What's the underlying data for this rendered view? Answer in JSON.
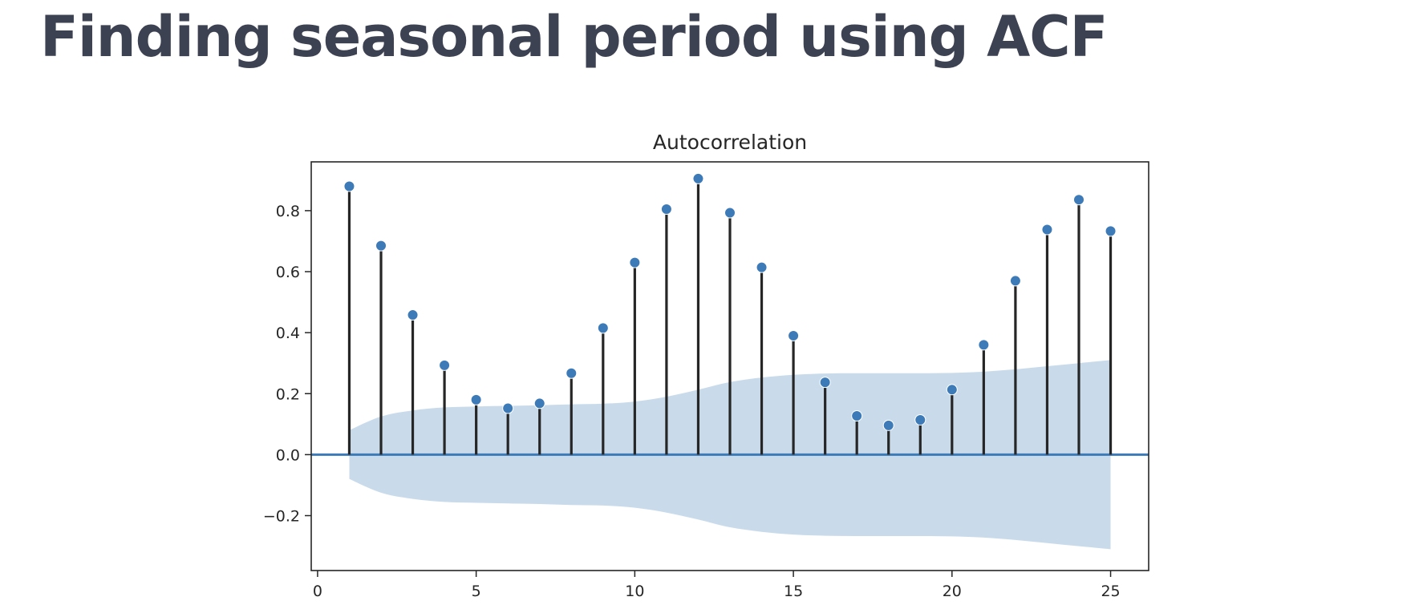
{
  "slide": {
    "title": "Finding seasonal period using ACF"
  },
  "chart_data": {
    "type": "stem",
    "title": "Autocorrelation",
    "xlabel": "",
    "ylabel": "",
    "lags": [
      1,
      2,
      3,
      4,
      5,
      6,
      7,
      8,
      9,
      10,
      11,
      12,
      13,
      14,
      15,
      16,
      17,
      18,
      19,
      20,
      21,
      22,
      23,
      24,
      25
    ],
    "values": [
      0.88,
      0.685,
      0.458,
      0.293,
      0.18,
      0.152,
      0.168,
      0.267,
      0.415,
      0.63,
      0.805,
      0.905,
      0.793,
      0.614,
      0.39,
      0.237,
      0.127,
      0.096,
      0.114,
      0.213,
      0.36,
      0.57,
      0.738,
      0.836,
      0.733
    ],
    "confidence_band": [
      0.08,
      0.125,
      0.145,
      0.155,
      0.158,
      0.16,
      0.162,
      0.165,
      0.167,
      0.174,
      0.19,
      0.213,
      0.238,
      0.253,
      0.262,
      0.266,
      0.267,
      0.267,
      0.267,
      0.268,
      0.272,
      0.28,
      0.29,
      0.3,
      0.31
    ],
    "xlim": [
      -0.2,
      26.2
    ],
    "ylim": [
      -0.38,
      0.96
    ],
    "xticks": [
      0,
      5,
      10,
      15,
      20,
      25
    ],
    "xtick_labels": [
      "0",
      "5",
      "10",
      "15",
      "20",
      "25"
    ],
    "yticks": [
      -0.2,
      0.0,
      0.2,
      0.4,
      0.6,
      0.8
    ],
    "ytick_labels": [
      "−0.2",
      "0.0",
      "0.2",
      "0.4",
      "0.6",
      "0.8"
    ],
    "grid": false,
    "legend": "none",
    "colors": {
      "marker": "#3d7ab8",
      "stem": "#262626",
      "band": "#c9dbeb",
      "zero_line": "#3d7ab8",
      "axes": "#262626",
      "title_text": "#3d4252"
    }
  }
}
